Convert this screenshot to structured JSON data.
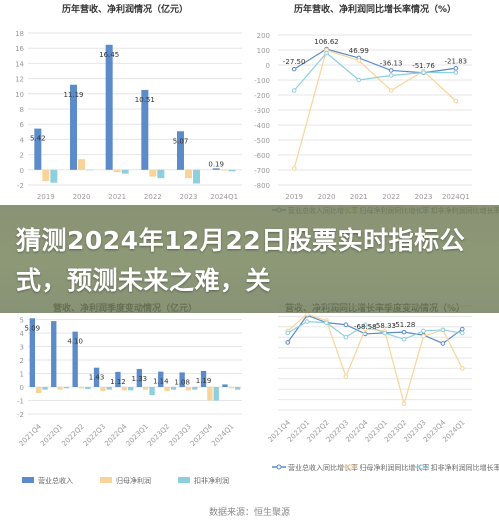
{
  "headline": "猜测2024年12月22日股票实时指标公式，预测未来之难，关",
  "source_label": "数据来源：恒生聚源",
  "colors": {
    "revenue": "#5b8bc9",
    "net_profit": "#f8d49a",
    "deducted_profit": "#8ecfdf",
    "grid": "#e6e6e6",
    "axis_text": "#999999",
    "title_text": "#333333"
  },
  "chart_data": [
    {
      "id": "annual-amount",
      "type": "bar",
      "title": "历年营收、净利润情况（亿元）",
      "categories": [
        "2019",
        "2020",
        "2021",
        "2022",
        "2023",
        "2024Q1"
      ],
      "ylim": [
        -2,
        18
      ],
      "yticks": [
        "-2",
        "0",
        "2",
        "4",
        "6",
        "8",
        "10",
        "12",
        "14",
        "16",
        "18"
      ],
      "series": [
        {
          "name": "营业总收入",
          "values": [
            5.42,
            11.19,
            16.45,
            10.51,
            5.07,
            0.19
          ]
        },
        {
          "name": "归母净利润",
          "values": [
            -1.5,
            1.4,
            -0.3,
            -0.9,
            -1.1,
            -0.1
          ]
        },
        {
          "name": "扣非净利润",
          "values": [
            -1.7,
            0.0,
            -0.5,
            -1.1,
            -1.8,
            -0.2
          ]
        }
      ],
      "data_labels": [
        "5.42",
        "11.19",
        "16.45",
        "10.51",
        "5.07",
        "0.19"
      ]
    },
    {
      "id": "annual-growth",
      "type": "line",
      "title": "历年营收、净利润同比增长率情况（%）",
      "categories": [
        "2019",
        "2020",
        "2021",
        "2022",
        "2023",
        "2024Q1"
      ],
      "ylim": [
        -800,
        200
      ],
      "yticks": [
        "-800",
        "-700",
        "-600",
        "-500",
        "-400",
        "-300",
        "-200",
        "-100",
        "0",
        "100",
        "200"
      ],
      "series": [
        {
          "name": "营业总收入同比增长率",
          "values": [
            -27.5,
            106.62,
            46.99,
            -36.13,
            -51.76,
            -21.83
          ]
        },
        {
          "name": "归母净利润同比增长率",
          "values": [
            -690,
            100,
            30,
            -170,
            -40,
            -240
          ]
        },
        {
          "name": "扣非净利润同比增长率",
          "values": [
            -170,
            80,
            -100,
            -70,
            -50,
            -50
          ]
        }
      ],
      "data_labels": [
        "-27.50",
        "106.62",
        "46.99",
        "-36.13",
        "-51.76",
        "-21.83"
      ]
    },
    {
      "id": "quarterly-amount",
      "type": "bar",
      "title": "营收、净利润季度变动情况（亿元）",
      "categories": [
        "2021Q4",
        "2022Q1",
        "2022Q2",
        "2022Q3",
        "2022Q4",
        "2023Q1",
        "2023Q2",
        "2023Q3",
        "2023Q4",
        "2024Q1"
      ],
      "ylim": [
        -2,
        6
      ],
      "yticks": [
        "-2",
        "-1",
        "0",
        "1",
        "2",
        "3",
        "4",
        "5"
      ],
      "series": [
        {
          "name": "营业总收入",
          "values": [
            5.09,
            4.88,
            4.1,
            1.43,
            1.12,
            1.33,
            1.14,
            1.08,
            1.19,
            0.19
          ]
        },
        {
          "name": "归母净利润",
          "values": [
            -0.45,
            -0.2,
            -0.1,
            -0.3,
            -0.25,
            -0.2,
            -0.3,
            -0.25,
            -1.0,
            -0.1
          ]
        },
        {
          "name": "扣非净利润",
          "values": [
            -0.2,
            -0.1,
            -0.15,
            -0.2,
            -0.25,
            -0.6,
            -0.2,
            -0.2,
            -1.0,
            -0.2
          ]
        }
      ],
      "data_labels": [
        "5.09",
        "",
        "4.10",
        "1.43",
        "1.12",
        "1.33",
        "1.14",
        "1.08",
        "1.19",
        ""
      ]
    },
    {
      "id": "quarterly-growth",
      "type": "line",
      "title": "营收、净利润同比增长率季度变动情况（%）",
      "categories": [
        "2021Q4",
        "2022Q1",
        "2022Q2",
        "2022Q3",
        "2022Q4",
        "2023Q1",
        "2023Q2",
        "2023Q3",
        "2023Q4",
        "2024Q1"
      ],
      "ylim": [
        -800,
        200
      ],
      "yticks": [],
      "series": [
        {
          "name": "营业总收入同比增长率",
          "values": [
            -150,
            110,
            40,
            20,
            -68.58,
            -58.33,
            -51.28,
            -80,
            -160,
            -21.83
          ]
        },
        {
          "name": "归母净利润同比增长率",
          "values": [
            -40,
            120,
            60,
            -480,
            -20,
            -40,
            -740,
            -90,
            -30,
            -400
          ]
        },
        {
          "name": "扣非净利润同比增长率",
          "values": [
            -60,
            50,
            40,
            -100,
            20,
            -60,
            -120,
            -40,
            -30,
            -60
          ]
        }
      ],
      "data_labels": [
        "",
        "",
        "",
        "",
        "-68.58",
        "-58.33",
        "-51.28",
        "",
        "",
        ""
      ]
    }
  ]
}
